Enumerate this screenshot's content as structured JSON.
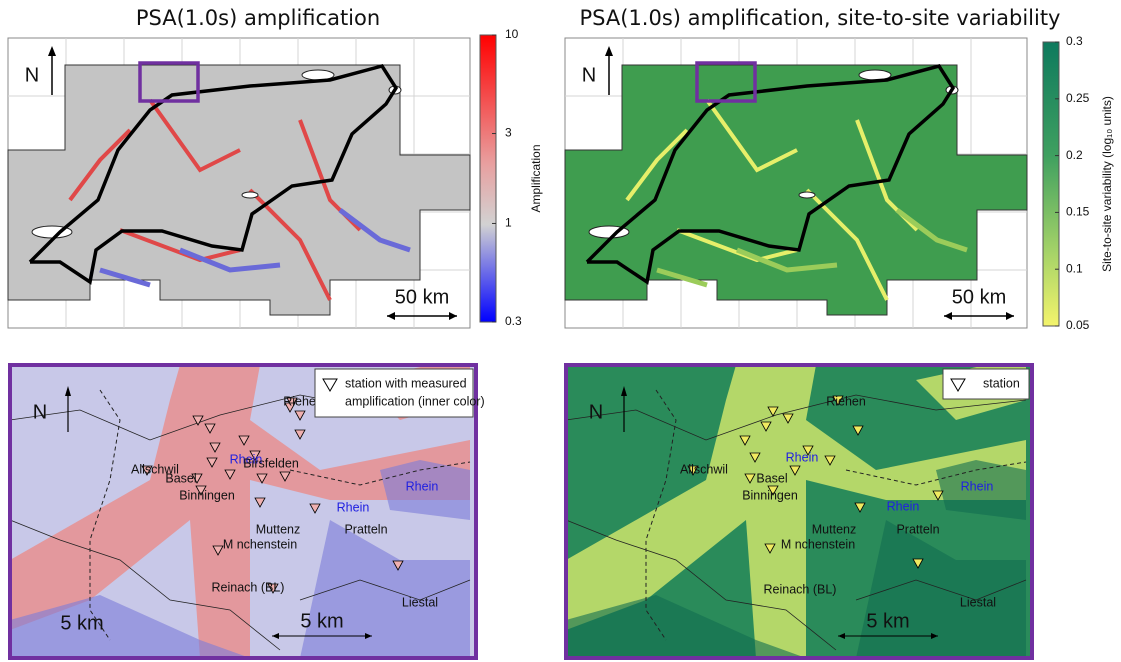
{
  "panels": [
    {
      "title": "PSA(1.0s) amplification",
      "north": "N",
      "scale": "50 km",
      "colorbar": {
        "label": "Amplification",
        "log": true,
        "lim": [
          0.3,
          10
        ],
        "ticks": [
          10,
          3,
          1,
          0.3
        ]
      }
    },
    {
      "title": "PSA(1.0s) amplification, site-to-site variability",
      "north": "N",
      "scale": "50 km",
      "colorbar": {
        "label": "Site-to-site variability (log₁₀ units)",
        "log": false,
        "lim": [
          0.05,
          0.3
        ],
        "ticks": [
          0.3,
          0.25,
          0.2,
          0.15,
          0.1,
          0.05
        ]
      }
    }
  ],
  "insets": [
    {
      "north": "N",
      "legend": [
        "station with measured",
        "amplification (inner color)"
      ],
      "places": [
        "Riehen",
        "Allschwil",
        "Basel",
        "Rhein",
        "Birsfelden",
        "Binningen",
        "Rhein",
        "Rhein",
        "Muttenz",
        "Pratteln",
        "M nchenstein",
        "Reinach (BL)",
        "Liestal"
      ],
      "scales": [
        "5 km",
        "5 km"
      ]
    },
    {
      "north": "N",
      "legend": [
        "station"
      ],
      "places": [
        "Riehen",
        "Allschwil",
        "Basel",
        "Rhein",
        "Binningen",
        "Rhein",
        "Rhein",
        "Muttenz",
        "Pratteln",
        "M nchenstein",
        "Reinach (BL)",
        "Liestal"
      ],
      "scales": [
        "5 km"
      ]
    }
  ]
}
